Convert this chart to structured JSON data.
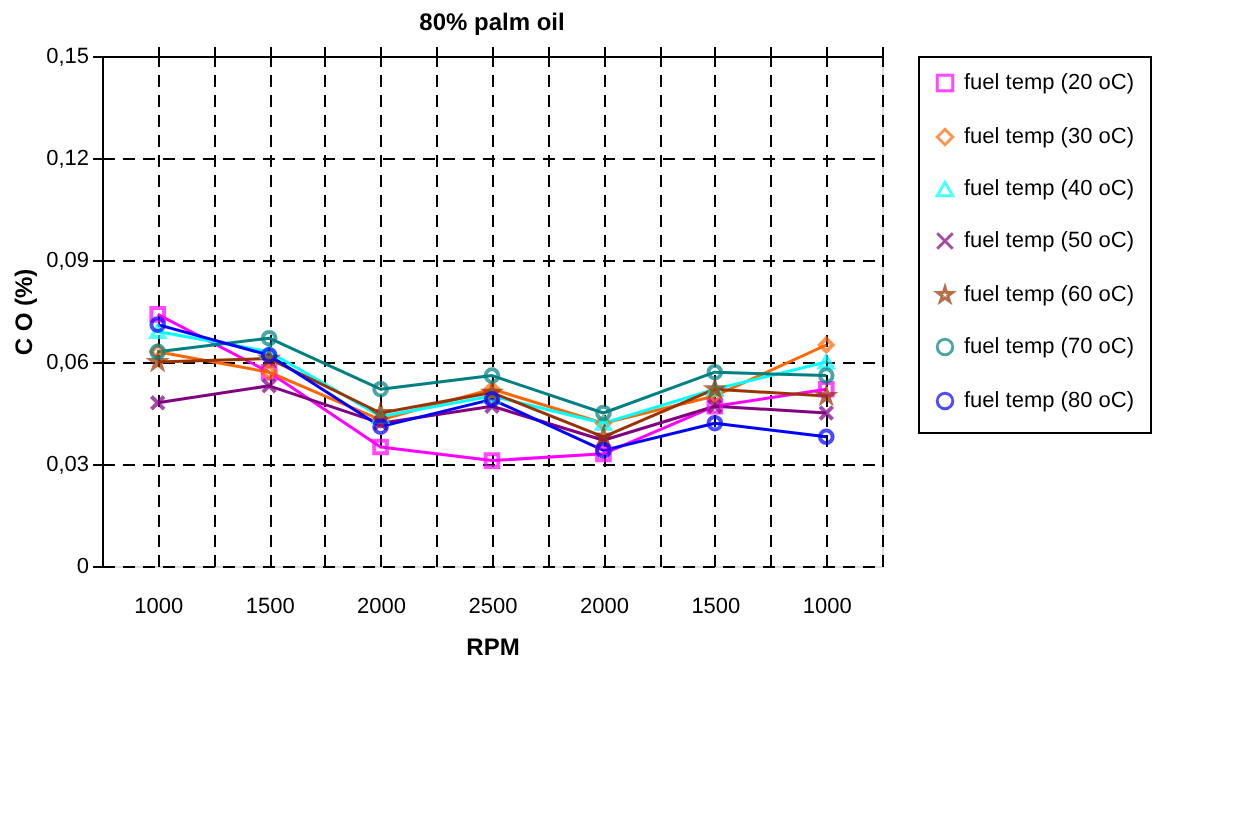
{
  "chart_data": {
    "type": "line",
    "title": "80% palm oil",
    "xlabel": "RPM",
    "ylabel": "C O  (%)",
    "categories": [
      "1000",
      "1500",
      "2000",
      "2500",
      "2000",
      "1500",
      "1000"
    ],
    "ylim": [
      0,
      0.15
    ],
    "yticks": [
      0,
      {
        "value": 0.03,
        "label": "0,03"
      },
      {
        "value": 0.06,
        "label": "0,06"
      },
      {
        "value": 0.09,
        "label": "0,09"
      },
      {
        "value": 0.12,
        "label": "0,12"
      },
      {
        "value": 0.15,
        "label": "0,15"
      }
    ],
    "grid": true,
    "legend": "right",
    "line_style": "solid",
    "series": [
      {
        "name": "fuel temp (20 oC)",
        "color": "#ff00ff",
        "marker": "square",
        "values": [
          0.074,
          0.057,
          0.035,
          0.031,
          0.033,
          0.047,
          0.052
        ]
      },
      {
        "name": "fuel temp (30 oC)",
        "color": "#ff6600",
        "marker": "diamond",
        "values": [
          0.063,
          0.057,
          0.043,
          0.052,
          0.042,
          0.05,
          0.065
        ]
      },
      {
        "name": "fuel temp (40 oC)",
        "color": "#00ffff",
        "marker": "triangle",
        "values": [
          0.069,
          0.063,
          0.044,
          0.05,
          0.042,
          0.052,
          0.06
        ]
      },
      {
        "name": "fuel temp (50 oC)",
        "color": "#800080",
        "marker": "cross",
        "values": [
          0.048,
          0.053,
          0.042,
          0.047,
          0.037,
          0.047,
          0.045
        ]
      },
      {
        "name": "fuel temp (60 oC)",
        "color": "#993300",
        "marker": "star",
        "values": [
          0.06,
          0.061,
          0.045,
          0.051,
          0.038,
          0.052,
          0.05
        ]
      },
      {
        "name": "fuel temp (70 oC)",
        "color": "#008080",
        "marker": "circle",
        "values": [
          0.063,
          0.067,
          0.052,
          0.056,
          0.045,
          0.057,
          0.056
        ]
      },
      {
        "name": "fuel temp (80 oC)",
        "color": "#0000ff",
        "marker": "circle",
        "values": [
          0.071,
          0.062,
          0.041,
          0.049,
          0.034,
          0.042,
          0.038
        ]
      }
    ]
  }
}
